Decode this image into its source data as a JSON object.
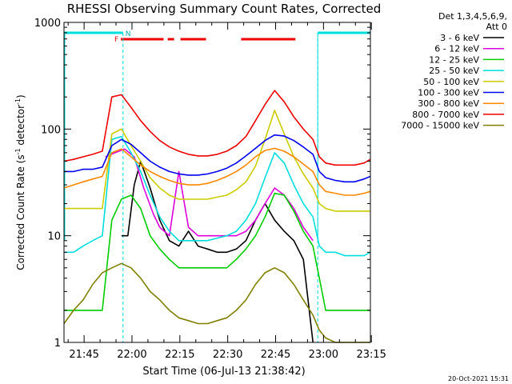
{
  "chart_data": {
    "type": "line",
    "title": "RHESSI Observing Summary Count Rates, Corrected",
    "xlabel": "Start Time (06-Jul-13 21:38:42)",
    "ylabel_main": "Corrected Count Rate (s",
    "ylabel_sup1": "-1",
    "ylabel_mid": " detector",
    "ylabel_sup2": "-1",
    "ylabel_end": ")",
    "yscale": "log",
    "ylim": [
      1,
      1000
    ],
    "xlim_minutes": [
      0,
      96
    ],
    "x_ticks": [
      {
        "label": "21:45",
        "minute": 6.3
      },
      {
        "label": "22:00",
        "minute": 21.3
      },
      {
        "label": "22:15",
        "minute": 36.3
      },
      {
        "label": "22:30",
        "minute": 51.3
      },
      {
        "label": "22:45",
        "minute": 66.3
      },
      {
        "label": "23:00",
        "minute": 81.3
      },
      {
        "label": "23:15",
        "minute": 96.3
      }
    ],
    "y_ticks": [
      {
        "label": "1",
        "value": 1
      },
      {
        "label": "10",
        "value": 10
      },
      {
        "label": "100",
        "value": 100
      },
      {
        "label": "1000",
        "value": 1000
      }
    ],
    "legend": {
      "header1": "Det 1,3,4,5,6,9,",
      "header2": "Att 0",
      "placement": "right"
    },
    "flags": {
      "f_label": "F",
      "n_label": "N",
      "night_intervals": [
        [
          0,
          18.5
        ],
        [
          79.5,
          96
        ]
      ],
      "flare_intervals": [
        [
          17.8,
          31.2
        ],
        [
          32.5,
          34.5
        ],
        [
          36.5,
          44.5
        ],
        [
          55.5,
          72.5
        ]
      ],
      "dashed_markers_minutes": [
        18.5,
        79.5,
        96
      ]
    },
    "series": [
      {
        "name": "3 - 6 keV",
        "color": "#000000",
        "x": [
          18,
          20,
          22,
          24,
          27,
          30,
          33,
          36,
          39,
          42,
          45,
          48,
          51,
          54,
          57,
          60,
          63,
          66,
          69,
          72,
          75,
          78
        ],
        "y": [
          10,
          10,
          30,
          50,
          28,
          14,
          9,
          8,
          11,
          8,
          7.5,
          7,
          7,
          7.5,
          9,
          14,
          20,
          14,
          11,
          9,
          6,
          1
        ]
      },
      {
        "name": "6 - 12 keV",
        "color": "#dd00dd",
        "x": [
          13,
          16,
          19,
          22,
          25,
          28,
          30,
          33,
          36,
          39,
          42,
          45,
          48,
          51,
          54,
          57,
          60,
          63,
          66,
          69,
          72,
          75,
          78
        ],
        "y": [
          55,
          60,
          65,
          55,
          28,
          16,
          12,
          10,
          40,
          12,
          10,
          10,
          10,
          10,
          10,
          11,
          14,
          20,
          28,
          24,
          18,
          12,
          9
        ]
      },
      {
        "name": "12 - 25 keV",
        "color": "#00cc00",
        "x": [
          0,
          3,
          6,
          9,
          12,
          15,
          18,
          21,
          24,
          27,
          30,
          33,
          36,
          39,
          42,
          45,
          48,
          51,
          54,
          57,
          60,
          63,
          66,
          69,
          72,
          75,
          78,
          80,
          82,
          85,
          88,
          91,
          94,
          96
        ],
        "y": [
          2,
          2,
          2,
          2,
          2,
          14,
          22,
          24,
          18,
          10,
          7.5,
          6,
          5,
          5,
          5,
          5,
          5,
          5,
          6,
          7.5,
          10,
          15,
          25,
          24,
          17,
          11,
          8,
          4,
          2,
          2,
          2,
          2,
          2,
          2
        ]
      },
      {
        "name": "25 - 50 keV",
        "color": "#00dddd",
        "x": [
          0,
          3,
          6,
          9,
          12,
          15,
          18,
          21,
          24,
          27,
          30,
          33,
          36,
          39,
          42,
          45,
          48,
          51,
          54,
          57,
          60,
          63,
          66,
          69,
          72,
          75,
          78,
          80,
          82,
          85,
          88,
          91,
          94,
          96
        ],
        "y": [
          7,
          7,
          8,
          9,
          10,
          80,
          85,
          60,
          40,
          24,
          15,
          11,
          9,
          9,
          9,
          9,
          9.5,
          10,
          11,
          14,
          20,
          35,
          60,
          48,
          30,
          20,
          15,
          8,
          7,
          7,
          6.5,
          6.5,
          6.5,
          7
        ]
      },
      {
        "name": "50 - 100 keV",
        "color": "#cccc00",
        "x": [
          0,
          3,
          6,
          9,
          12,
          15,
          18,
          21,
          24,
          27,
          30,
          33,
          36,
          39,
          42,
          45,
          48,
          51,
          54,
          57,
          60,
          63,
          66,
          69,
          72,
          75,
          78,
          80,
          82,
          85,
          88,
          91,
          94,
          96
        ],
        "y": [
          18,
          18,
          18,
          18,
          18,
          90,
          100,
          70,
          50,
          35,
          28,
          24,
          22,
          22,
          22,
          22,
          23,
          24,
          27,
          32,
          45,
          80,
          150,
          90,
          55,
          38,
          28,
          20,
          18,
          17,
          17,
          17,
          17,
          17
        ]
      },
      {
        "name": "100 - 300 keV",
        "color": "#0000ee",
        "x": [
          0,
          3,
          6,
          9,
          12,
          15,
          18,
          21,
          24,
          27,
          30,
          33,
          36,
          39,
          42,
          45,
          48,
          51,
          54,
          57,
          60,
          63,
          66,
          69,
          72,
          75,
          78,
          80,
          82,
          85,
          88,
          91,
          94,
          96
        ],
        "y": [
          40,
          40,
          42,
          42,
          44,
          70,
          80,
          72,
          60,
          50,
          44,
          40,
          38,
          37,
          37,
          38,
          40,
          43,
          48,
          56,
          66,
          78,
          88,
          86,
          78,
          68,
          58,
          40,
          35,
          33,
          32,
          32,
          34,
          36
        ]
      },
      {
        "name": "300 - 800 keV",
        "color": "#ff8800",
        "x": [
          0,
          3,
          6,
          9,
          12,
          15,
          18,
          21,
          24,
          27,
          30,
          33,
          36,
          39,
          42,
          45,
          48,
          51,
          54,
          57,
          60,
          63,
          66,
          69,
          72,
          75,
          78,
          80,
          82,
          85,
          88,
          91,
          94,
          96
        ],
        "y": [
          28,
          30,
          32,
          34,
          36,
          60,
          65,
          55,
          46,
          40,
          36,
          33,
          31,
          30,
          30,
          31,
          33,
          36,
          40,
          46,
          55,
          63,
          66,
          62,
          55,
          47,
          40,
          30,
          26,
          25,
          24,
          24,
          25,
          26
        ]
      },
      {
        "name": "800 - 7000 keV",
        "color": "#ee0000",
        "x": [
          0,
          3,
          6,
          9,
          12,
          15,
          18,
          21,
          24,
          27,
          30,
          33,
          36,
          39,
          42,
          45,
          48,
          51,
          54,
          57,
          60,
          63,
          66,
          69,
          72,
          75,
          78,
          80,
          82,
          85,
          88,
          91,
          94,
          96
        ],
        "y": [
          50,
          52,
          55,
          58,
          62,
          200,
          210,
          160,
          120,
          95,
          78,
          68,
          62,
          58,
          56,
          56,
          58,
          62,
          70,
          85,
          120,
          170,
          230,
          180,
          130,
          100,
          80,
          55,
          48,
          46,
          46,
          46,
          48,
          52
        ]
      },
      {
        "name": "7000 - 15000 keV",
        "color": "#808000",
        "x": [
          0,
          3,
          6,
          9,
          12,
          15,
          18,
          21,
          24,
          27,
          30,
          33,
          36,
          39,
          42,
          45,
          48,
          51,
          54,
          57,
          60,
          63,
          66,
          69,
          72,
          75,
          78,
          80,
          82,
          85,
          88,
          91,
          94,
          96
        ],
        "y": [
          1.5,
          2,
          2.5,
          3.5,
          4.5,
          5,
          5.5,
          5,
          4,
          3,
          2.5,
          2,
          1.7,
          1.6,
          1.5,
          1.5,
          1.6,
          1.7,
          2,
          2.5,
          3.5,
          4.5,
          5,
          4.5,
          3.5,
          2.5,
          1.8,
          1.3,
          1.1,
          1,
          1,
          1,
          1,
          1
        ]
      }
    ]
  },
  "footer": {
    "date_stamp": "20-Oct-2021 15:31"
  }
}
